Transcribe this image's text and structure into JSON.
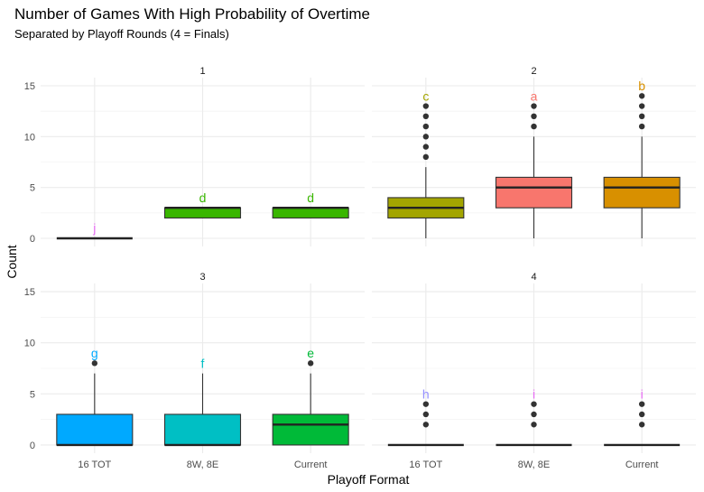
{
  "chart_data": {
    "type": "box",
    "title": "Number of Games With High Probability of Overtime",
    "subtitle": "Separated by Playoff Rounds (4 = Finals)",
    "xlabel": "Playoff Format",
    "ylabel": "Count",
    "categories": [
      "16 TOT",
      "8W, 8E",
      "Current"
    ],
    "ylim": [
      -0.8,
      15.8
    ],
    "yticks": [
      0,
      5,
      10,
      15
    ],
    "grid": true,
    "legend": "none",
    "panels": [
      {
        "label": "1",
        "boxes": [
          {
            "category": "16 TOT",
            "q1": 0,
            "median": 0,
            "q3": 0,
            "whisker_low": 0,
            "whisker_high": 0,
            "outliers": [],
            "letter": "j",
            "letter_y": 1,
            "fill": "#E76BF3",
            "letter_color": "#E76BF3"
          },
          {
            "category": "8W, 8E",
            "q1": 2,
            "median": 3,
            "q3": 3,
            "whisker_low": 2,
            "whisker_high": 3,
            "outliers": [],
            "letter": "d",
            "letter_y": 4,
            "fill": "#39B600",
            "letter_color": "#39B600"
          },
          {
            "category": "Current",
            "q1": 2,
            "median": 3,
            "q3": 3,
            "whisker_low": 2,
            "whisker_high": 3,
            "outliers": [],
            "letter": "d",
            "letter_y": 4,
            "fill": "#39B600",
            "letter_color": "#39B600"
          }
        ]
      },
      {
        "label": "2",
        "boxes": [
          {
            "category": "16 TOT",
            "q1": 2,
            "median": 3,
            "q3": 4,
            "whisker_low": 0,
            "whisker_high": 7,
            "outliers": [
              8,
              9,
              10,
              11,
              12,
              13
            ],
            "letter": "c",
            "letter_y": 14,
            "fill": "#A3A500",
            "letter_color": "#A3A500"
          },
          {
            "category": "8W, 8E",
            "q1": 3,
            "median": 5,
            "q3": 6,
            "whisker_low": 0,
            "whisker_high": 10,
            "outliers": [
              11,
              12,
              13
            ],
            "letter": "a",
            "letter_y": 14,
            "fill": "#F8766D",
            "letter_color": "#F8766D"
          },
          {
            "category": "Current",
            "q1": 3,
            "median": 5,
            "q3": 6,
            "whisker_low": 0,
            "whisker_high": 10,
            "outliers": [
              11,
              12,
              13,
              14
            ],
            "letter": "b",
            "letter_y": 15,
            "fill": "#D89000",
            "letter_color": "#D89000"
          }
        ]
      },
      {
        "label": "3",
        "boxes": [
          {
            "category": "16 TOT",
            "q1": 0,
            "median": 0,
            "q3": 3,
            "whisker_low": 0,
            "whisker_high": 7,
            "outliers": [
              8
            ],
            "letter": "g",
            "letter_y": 9,
            "fill": "#00A9FF",
            "letter_color": "#00A9FF"
          },
          {
            "category": "8W, 8E",
            "q1": 0,
            "median": 0,
            "q3": 3,
            "whisker_low": 0,
            "whisker_high": 7,
            "outliers": [],
            "letter": "f",
            "letter_y": 8,
            "fill": "#00BFC4",
            "letter_color": "#00BFC4"
          },
          {
            "category": "Current",
            "q1": 0,
            "median": 2,
            "q3": 3,
            "whisker_low": 0,
            "whisker_high": 7,
            "outliers": [
              8
            ],
            "letter": "e",
            "letter_y": 9,
            "fill": "#00BA38",
            "letter_color": "#00BA38"
          }
        ]
      },
      {
        "label": "4",
        "boxes": [
          {
            "category": "16 TOT",
            "q1": 0,
            "median": 0,
            "q3": 0,
            "whisker_low": 0,
            "whisker_high": 0,
            "outliers": [
              2,
              3,
              4
            ],
            "letter": "h",
            "letter_y": 5,
            "fill": "#9590FF",
            "letter_color": "#9590FF"
          },
          {
            "category": "8W, 8E",
            "q1": 0,
            "median": 0,
            "q3": 0,
            "whisker_low": 0,
            "whisker_high": 0,
            "outliers": [
              2,
              3,
              4
            ],
            "letter": "i",
            "letter_y": 5,
            "fill": "#E76BF3",
            "letter_color": "#E76BF3"
          },
          {
            "category": "Current",
            "q1": 0,
            "median": 0,
            "q3": 0,
            "whisker_low": 0,
            "whisker_high": 0,
            "outliers": [
              2,
              3,
              4
            ],
            "letter": "i",
            "letter_y": 5,
            "fill": "#E76BF3",
            "letter_color": "#E76BF3"
          }
        ]
      }
    ]
  }
}
